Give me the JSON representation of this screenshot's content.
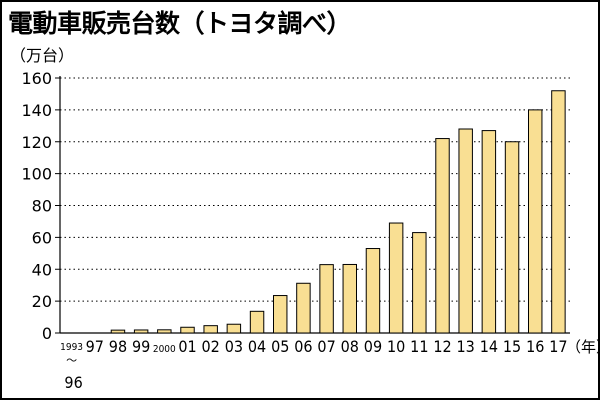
{
  "title": "電動車販売台数（トヨタ調べ）",
  "unit_label": "（万台）",
  "chart_data": {
    "type": "bar",
    "title": "電動車販売台数（トヨタ調べ）",
    "ylabel": "（万台）",
    "xlabel_suffix": "（年）",
    "ylim": [
      0,
      160
    ],
    "yticks": [
      0,
      20,
      40,
      60,
      80,
      100,
      120,
      140,
      160
    ],
    "grid": "horizontal-dotted",
    "bar_color": "#f9df93",
    "bar_stroke": "#000000",
    "categories": [
      "1993〜96",
      "97",
      "98",
      "99",
      "2000",
      "01",
      "02",
      "03",
      "04",
      "05",
      "06",
      "07",
      "08",
      "09",
      "10",
      "11",
      "12",
      "13",
      "14",
      "15",
      "16",
      "17"
    ],
    "category_labels": [
      [
        "1993",
        "〜",
        "96"
      ],
      [
        "97"
      ],
      [
        "98"
      ],
      [
        "99"
      ],
      [
        "2000"
      ],
      [
        "01"
      ],
      [
        "02"
      ],
      [
        "03"
      ],
      [
        "04"
      ],
      [
        "05"
      ],
      [
        "06"
      ],
      [
        "07"
      ],
      [
        "08"
      ],
      [
        "09"
      ],
      [
        "10"
      ],
      [
        "11"
      ],
      [
        "12"
      ],
      [
        "13"
      ],
      [
        "14"
      ],
      [
        "15"
      ],
      [
        "16"
      ],
      [
        "17"
      ]
    ],
    "values": [
      0,
      0,
      1.8,
      1.9,
      2.0,
      3.6,
      4.6,
      5.5,
      13.6,
      23.5,
      31.2,
      42.9,
      43.0,
      53.0,
      69.0,
      63.0,
      122.0,
      128.0,
      127.0,
      120.0,
      140.0,
      152.0
    ]
  }
}
